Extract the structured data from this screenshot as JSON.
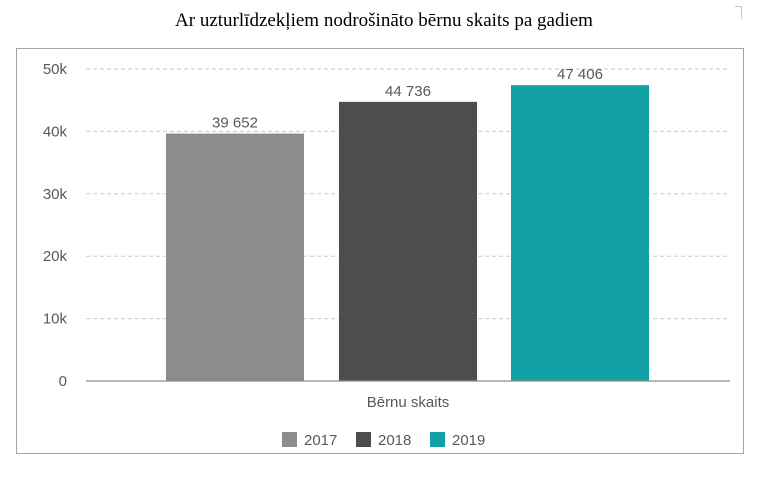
{
  "chart_data": {
    "type": "bar",
    "title": "Ar uzturlīdzekļiem nodrošināto bērnu skaits pa gadiem",
    "categories": [
      "Bērnu skaits"
    ],
    "series": [
      {
        "name": "2017",
        "values": [
          39652
        ],
        "label": "39 652",
        "color": "#8c8c8c"
      },
      {
        "name": "2018",
        "values": [
          44736
        ],
        "label": "44 736",
        "color": "#4d4d4d"
      },
      {
        "name": "2019",
        "values": [
          47406
        ],
        "label": "47 406",
        "color": "#10a0a6"
      }
    ],
    "ylim": [
      0,
      50000
    ],
    "yticks": [
      {
        "value": 0,
        "label": "0"
      },
      {
        "value": 10000,
        "label": "10k"
      },
      {
        "value": 20000,
        "label": "20k"
      },
      {
        "value": 30000,
        "label": "30k"
      },
      {
        "value": 40000,
        "label": "40k"
      },
      {
        "value": 50000,
        "label": "50k"
      }
    ],
    "grid": true,
    "legend_position": "bottom"
  }
}
